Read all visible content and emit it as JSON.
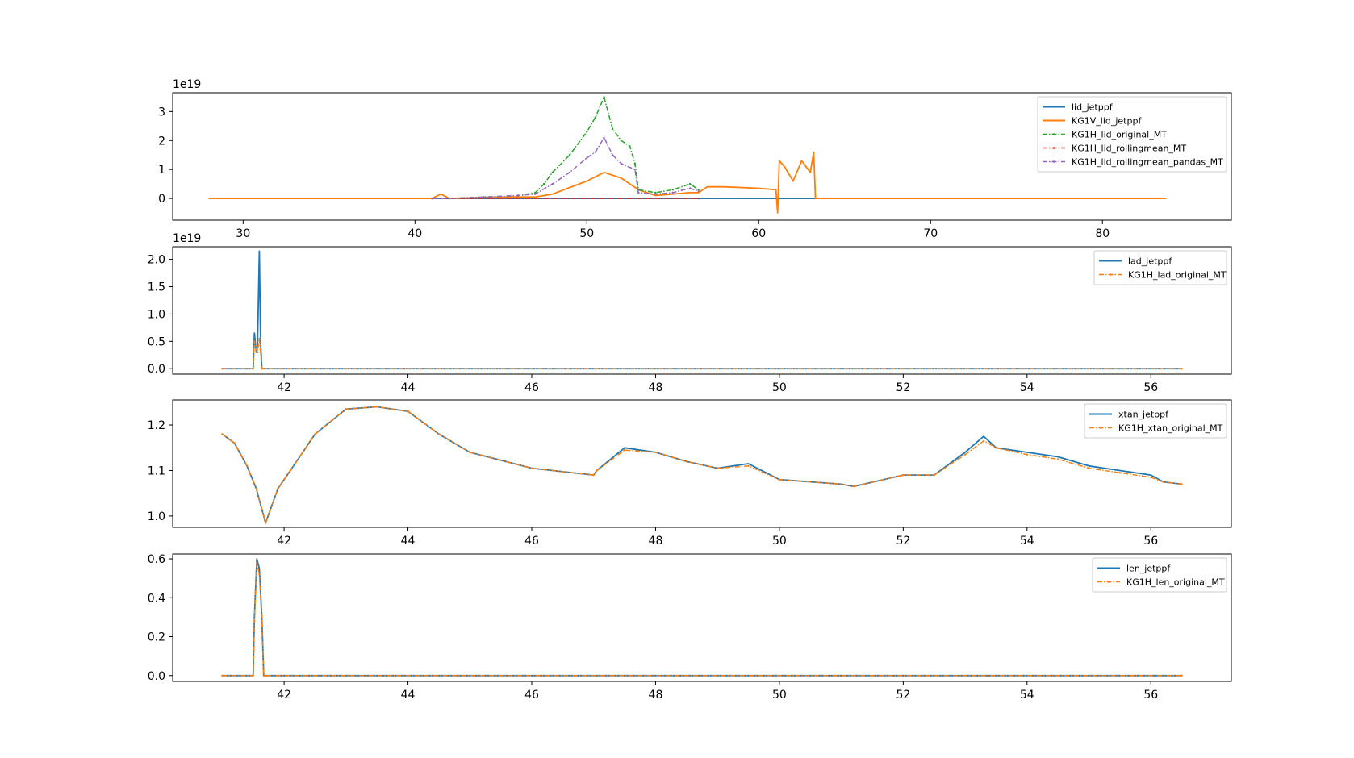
{
  "chart_data": [
    {
      "type": "line",
      "offset_text": "1e19",
      "xlim": [
        25.9,
        87.5
      ],
      "ylim": [
        -0.75,
        3.65
      ],
      "xticks": [
        30,
        40,
        50,
        60,
        70,
        80
      ],
      "yticks": [
        0,
        1,
        2,
        3
      ],
      "legend_position": "upper right",
      "series": [
        {
          "name": "lid_jetppf",
          "color": "#1f77b4",
          "style": "solid",
          "x": [
            28,
            83.7
          ],
          "y": [
            0,
            0
          ]
        },
        {
          "name": "KG1V_lid_jetppf",
          "color": "#ff7f0e",
          "style": "solid",
          "x": [
            28,
            35,
            40,
            41,
            41.5,
            42,
            45,
            47,
            48,
            50,
            51,
            52,
            53,
            54,
            56,
            56.5,
            57,
            58,
            60,
            61,
            61.1,
            61.2,
            61.5,
            62,
            62.5,
            63,
            63.2,
            63.3,
            65,
            70,
            75,
            80,
            83.7
          ],
          "y": [
            0,
            0,
            0,
            0,
            0.15,
            0,
            0.05,
            0.05,
            0.15,
            0.6,
            0.9,
            0.7,
            0.3,
            0.1,
            0.2,
            0.2,
            0.4,
            0.4,
            0.35,
            0.3,
            -0.5,
            1.3,
            1.1,
            0.6,
            1.3,
            0.9,
            1.6,
            0,
            0,
            0,
            0,
            0,
            0
          ]
        },
        {
          "name": "KG1H_lid_original_MT",
          "color": "#2ca02c",
          "style": "dashdot-marker",
          "x": [
            41,
            42,
            44,
            46,
            47,
            47.5,
            48,
            49,
            50,
            50.5,
            51,
            51.5,
            52,
            52.5,
            52.8,
            53,
            54,
            55,
            56,
            56.5
          ],
          "y": [
            0,
            0,
            0.05,
            0.1,
            0.2,
            0.5,
            0.9,
            1.5,
            2.3,
            2.8,
            3.5,
            2.4,
            2.0,
            1.8,
            1.2,
            0.3,
            0.2,
            0.3,
            0.5,
            0.3
          ]
        },
        {
          "name": "KG1H_lid_rollingmean_MT",
          "color": "#d62728",
          "style": "dashdot-marker",
          "x": [
            41,
            56.5
          ],
          "y": [
            0,
            0
          ]
        },
        {
          "name": "KG1H_lid_rollingmean_pandas_MT",
          "color": "#9467bd",
          "style": "dashdot-marker",
          "x": [
            41,
            42,
            44,
            46,
            47,
            48,
            49,
            50,
            50.5,
            51,
            51.5,
            52,
            52.8,
            53,
            54,
            55,
            56,
            56.5
          ],
          "y": [
            0,
            0,
            0.05,
            0.1,
            0.15,
            0.5,
            0.9,
            1.4,
            1.6,
            2.1,
            1.5,
            1.2,
            1.0,
            0.2,
            0.15,
            0.2,
            0.35,
            0.25
          ]
        }
      ]
    },
    {
      "type": "line",
      "offset_text": "1e19",
      "xlim": [
        40.2,
        57.3
      ],
      "ylim": [
        -0.1,
        2.23
      ],
      "xticks": [
        42,
        44,
        46,
        48,
        50,
        52,
        54,
        56
      ],
      "yticks": [
        "0.0",
        "0.5",
        "1.0",
        "1.5",
        "2.0"
      ],
      "legend_position": "upper right",
      "series": [
        {
          "name": "lad_jetppf",
          "color": "#1f77b4",
          "style": "solid",
          "x": [
            41,
            41.5,
            41.52,
            41.55,
            41.57,
            41.6,
            41.62,
            41.64,
            41.66,
            56.5
          ],
          "y": [
            0,
            0,
            0.65,
            0.3,
            0.4,
            2.15,
            0.5,
            0,
            0,
            0
          ]
        },
        {
          "name": "KG1H_lad_original_MT",
          "color": "#ff7f0e",
          "style": "dashdot-marker",
          "x": [
            41,
            41.5,
            41.52,
            41.55,
            41.57,
            41.6,
            41.62,
            41.64,
            41.66,
            56.5
          ],
          "y": [
            0,
            0,
            0.5,
            0.35,
            0.3,
            0.55,
            0.3,
            0,
            0,
            0
          ]
        }
      ]
    },
    {
      "type": "line",
      "xlim": [
        40.2,
        57.3
      ],
      "ylim": [
        0.975,
        1.255
      ],
      "xticks": [
        42,
        44,
        46,
        48,
        50,
        52,
        54,
        56
      ],
      "yticks": [
        "1.0",
        "1.1",
        "1.2"
      ],
      "legend_position": "upper right",
      "series": [
        {
          "name": "xtan_jetppf",
          "color": "#1f77b4",
          "style": "solid",
          "x": [
            41,
            41.2,
            41.4,
            41.55,
            41.7,
            41.9,
            42.1,
            42.5,
            43,
            43.5,
            44,
            44.5,
            45,
            46,
            47,
            47.05,
            47.5,
            48,
            48.5,
            49,
            49.5,
            50,
            51,
            51.2,
            52,
            52.5,
            53,
            53.3,
            53.5,
            54,
            54.5,
            55,
            55.5,
            56,
            56.2,
            56.5
          ],
          "y": [
            1.18,
            1.16,
            1.11,
            1.06,
            0.985,
            1.06,
            1.1,
            1.18,
            1.235,
            1.24,
            1.23,
            1.18,
            1.14,
            1.105,
            1.09,
            1.1,
            1.15,
            1.14,
            1.12,
            1.105,
            1.115,
            1.08,
            1.07,
            1.065,
            1.09,
            1.09,
            1.14,
            1.175,
            1.15,
            1.14,
            1.13,
            1.11,
            1.1,
            1.09,
            1.075,
            1.07
          ]
        },
        {
          "name": "KG1H_xtan_original_MT",
          "color": "#ff7f0e",
          "style": "dashdot-marker",
          "x": [
            41,
            41.2,
            41.4,
            41.55,
            41.7,
            41.9,
            42.1,
            42.5,
            43,
            43.5,
            44,
            44.5,
            45,
            46,
            47,
            47.05,
            47.5,
            48,
            48.5,
            49,
            49.5,
            50,
            51,
            51.2,
            52,
            52.5,
            53,
            53.3,
            53.5,
            54,
            54.5,
            55,
            55.5,
            56,
            56.2,
            56.5
          ],
          "y": [
            1.18,
            1.16,
            1.11,
            1.06,
            0.985,
            1.06,
            1.1,
            1.18,
            1.235,
            1.24,
            1.23,
            1.18,
            1.14,
            1.105,
            1.09,
            1.1,
            1.145,
            1.14,
            1.12,
            1.105,
            1.11,
            1.08,
            1.07,
            1.065,
            1.09,
            1.09,
            1.135,
            1.165,
            1.15,
            1.135,
            1.125,
            1.105,
            1.095,
            1.085,
            1.075,
            1.07
          ]
        }
      ]
    },
    {
      "type": "line",
      "xlim": [
        40.2,
        57.3
      ],
      "ylim": [
        -0.03,
        0.625
      ],
      "xticks": [
        42,
        44,
        46,
        48,
        50,
        52,
        54,
        56
      ],
      "yticks": [
        "0.0",
        "0.2",
        "0.4",
        "0.6"
      ],
      "legend_position": "upper right",
      "series": [
        {
          "name": "len_jetppf",
          "color": "#1f77b4",
          "style": "solid",
          "x": [
            41,
            41.5,
            41.52,
            41.56,
            41.6,
            41.64,
            41.67,
            41.7,
            56.5
          ],
          "y": [
            0,
            0,
            0.3,
            0.6,
            0.55,
            0.3,
            0,
            0,
            0
          ]
        },
        {
          "name": "KG1H_len_original_MT",
          "color": "#ff7f0e",
          "style": "dashdot-marker",
          "x": [
            41,
            41.5,
            41.52,
            41.56,
            41.6,
            41.64,
            41.67,
            41.7,
            56.5
          ],
          "y": [
            0,
            0,
            0.28,
            0.58,
            0.52,
            0.28,
            0,
            0,
            0
          ]
        }
      ]
    }
  ]
}
